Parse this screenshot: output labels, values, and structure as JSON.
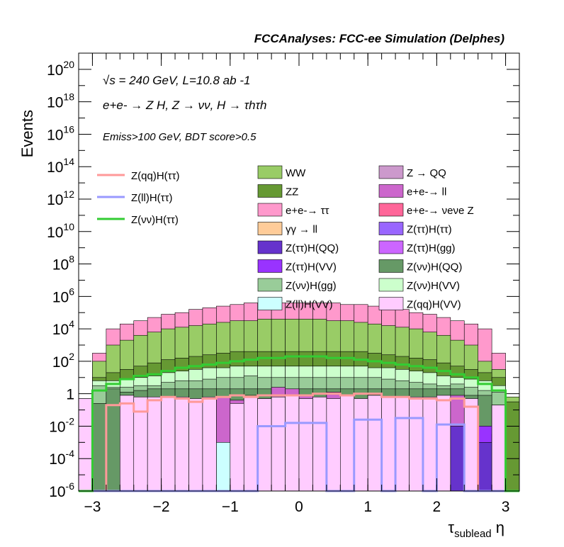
{
  "chart_data": {
    "type": "bar",
    "title": "FCCAnalyses: FCC-ee Simulation (Delphes)",
    "xlabel": "τsublead η",
    "ylabel": "Events",
    "xlim": [
      -3.2,
      3.2
    ],
    "ylim_log10": [
      -6,
      21
    ],
    "log_y": true,
    "grid": false,
    "x_ticks": [
      -3,
      -2,
      -1,
      0,
      1,
      2,
      3
    ],
    "x_tick_labels": [
      "−3",
      "−2",
      "−1",
      "0",
      "1",
      "2",
      "3"
    ],
    "y_ticks_log10": [
      -6,
      -4,
      -2,
      0,
      2,
      4,
      6,
      8,
      10,
      12,
      14,
      16,
      18,
      20
    ],
    "y_tick_labels": [
      "10-6",
      "10-4",
      "10-2",
      "1",
      "102",
      "104",
      "106",
      "108",
      "1010",
      "1012",
      "1014",
      "1016",
      "1018",
      "1020"
    ],
    "annotations": [
      "√s = 240 GeV, L=10.8 ab -1",
      "e+e- → Z H, Z → νν, H → τhτh",
      "Emiss>100 GeV, BDT score>0.5"
    ],
    "bin_edges_range": [
      -3.2,
      3.2
    ],
    "n_bins": 32,
    "stack_series": [
      {
        "name": "Z(qq)H(VV)",
        "color": "#ffccff",
        "log10_top": [
          -0.3,
          -6,
          -6,
          -0.1,
          -0.2,
          -0.2,
          -0.2,
          -0.2,
          -0.3,
          -0.2,
          -6,
          -0.6,
          -0.2,
          -0.3,
          -0.2,
          -0.1,
          -0.3,
          -0.2,
          -0.3,
          -0.1,
          -0.3,
          -0.1,
          -0.2,
          -0.2,
          -0.2,
          -0.2,
          -0.1,
          -6,
          -0.3,
          -6,
          -0.7,
          -6
        ]
      },
      {
        "name": "Z(ll)H(VV)",
        "color": "#ccffff",
        "log10_top": [
          -6,
          -6,
          -6,
          -6,
          -6,
          -6,
          -6,
          -6,
          -6,
          -3,
          -3,
          -6,
          -2,
          -2,
          -6,
          -6,
          -6,
          -6,
          -6,
          -3,
          -2,
          -6,
          -6,
          -6,
          -6,
          -6,
          -6,
          -6,
          -6,
          -6,
          -6,
          -6
        ]
      },
      {
        "name": "Z(ττ)H(gg)",
        "color": "#cc66ff",
        "log10_top": [
          -6,
          -6,
          -6,
          -6,
          -6,
          -6,
          -6,
          -6,
          -6,
          -6,
          -6,
          -6,
          -6,
          -6,
          -6,
          -6,
          -6,
          -6,
          -6,
          -6,
          -6,
          -6,
          -6,
          -6,
          -6,
          -6,
          -6,
          -6,
          -6,
          -6,
          -6,
          -6
        ]
      },
      {
        "name": "Z(ττ)H(QQ)",
        "color": "#6633cc",
        "log10_top": [
          -6,
          -6,
          -6,
          -6,
          -6,
          -6,
          -6,
          -6,
          -6,
          -6,
          -6,
          -6,
          -6,
          -3,
          -2,
          -6,
          -3,
          -3,
          -6,
          -6,
          -6,
          -3,
          -3,
          -3,
          -6,
          -6,
          -6,
          -2,
          -6,
          -3,
          -6,
          -6
        ]
      },
      {
        "name": "Z(ττ)H(VV)",
        "color": "#9933ff",
        "log10_top": [
          -6,
          -6,
          -6,
          -6,
          -6,
          -6,
          -6,
          -6,
          -6,
          -6,
          -6,
          -6,
          -6,
          -6,
          -6,
          -6,
          -6,
          -6,
          -6,
          -6,
          -6,
          -6,
          -6,
          -6,
          -6,
          -6,
          -6,
          -6,
          -6,
          -2,
          -2.5,
          -6
        ]
      },
      {
        "name": "γγ → ll",
        "color": "#ffcc99",
        "log10_top": [
          -6,
          -6,
          -6,
          -6,
          -6,
          -6,
          -6,
          -6,
          -6,
          -6,
          -6,
          -6,
          -0.1,
          -6,
          -6,
          -6,
          -6,
          -6,
          -6,
          -6,
          -6,
          -0.1,
          -6,
          -6,
          -6,
          -6,
          -6,
          -6,
          -6,
          -6,
          -6,
          -6
        ]
      },
      {
        "name": "e+e-→ ll",
        "color": "#cc66cc",
        "log10_top": [
          -6,
          -6,
          -6,
          -6,
          -6,
          -6,
          -6,
          -6,
          -6,
          -6,
          -0.2,
          -0.4,
          -0.2,
          -0.3,
          0.4,
          0.3,
          -0.1,
          -6,
          0.1,
          -0.2,
          -0.5,
          -0.1,
          -0.2,
          -0.2,
          -0.4,
          -0.2,
          -0.2,
          -0.1,
          -6,
          -6,
          -6,
          -6
        ]
      },
      {
        "name": "Z(νν)H(QQ)",
        "color": "#669966",
        "log10_top": [
          -6,
          -0.6,
          0.3,
          0.1,
          0.2,
          0.3,
          0.3,
          0.3,
          0.3,
          0.3,
          0.3,
          0.3,
          0.3,
          0.3,
          0.3,
          0.3,
          0.3,
          0.3,
          0.3,
          0.3,
          0.3,
          0.3,
          0.3,
          0.3,
          0.3,
          0.3,
          0.3,
          0.3,
          -0.1,
          -0.1,
          -0.7,
          -6
        ]
      },
      {
        "name": "Z(νν)H(gg)",
        "color": "#99cc99",
        "log10_top": [
          -6,
          0.5,
          0.4,
          0.4,
          0.5,
          0.5,
          0.7,
          0.8,
          0.8,
          0.9,
          1.0,
          1.0,
          1.1,
          1.0,
          1.0,
          1.0,
          1.0,
          1.0,
          1.0,
          1.0,
          1.0,
          1.0,
          0.9,
          0.8,
          0.7,
          0.6,
          0.5,
          0.6,
          0.4,
          0.2,
          0.1,
          -6
        ]
      },
      {
        "name": "Z(νν)H(VV)",
        "color": "#ccffcc",
        "log10_top": [
          -6,
          0.8,
          0.8,
          0.9,
          1.0,
          1.1,
          1.3,
          1.4,
          1.5,
          1.6,
          1.6,
          1.7,
          1.7,
          1.7,
          1.7,
          1.7,
          1.7,
          1.7,
          1.7,
          1.7,
          1.7,
          1.6,
          1.6,
          1.5,
          1.4,
          1.3,
          1.1,
          1.0,
          0.9,
          0.8,
          0.5,
          -6
        ]
      },
      {
        "name": "ZZ",
        "color": "#669933",
        "log10_top": [
          -1.3,
          1.0,
          1.3,
          1.5,
          1.7,
          1.9,
          2.1,
          2.2,
          2.3,
          2.4,
          2.5,
          2.6,
          2.6,
          2.6,
          2.6,
          2.6,
          2.6,
          2.6,
          2.6,
          2.6,
          2.6,
          2.5,
          2.4,
          2.3,
          2.2,
          2.1,
          1.9,
          1.7,
          1.5,
          1.3,
          1.0,
          -0.5
        ]
      },
      {
        "name": "WW",
        "color": "#99cc66",
        "log10_top": [
          -1.0,
          2.0,
          3.0,
          3.3,
          3.6,
          3.8,
          4.0,
          4.1,
          4.2,
          4.3,
          4.4,
          4.5,
          4.5,
          4.6,
          4.6,
          4.6,
          4.6,
          4.6,
          4.5,
          4.5,
          4.4,
          4.3,
          4.2,
          4.1,
          4.0,
          3.8,
          3.6,
          3.3,
          3.0,
          2.0,
          1.5,
          -0.2
        ]
      },
      {
        "name": "e+e-→ ττ",
        "color": "#ff99cc",
        "log10_top": [
          -0.3,
          2.5,
          4.0,
          4.3,
          4.5,
          4.7,
          4.9,
          5.0,
          5.2,
          5.3,
          5.4,
          5.5,
          5.6,
          5.6,
          5.6,
          5.6,
          5.6,
          5.6,
          5.6,
          5.5,
          5.5,
          5.4,
          5.3,
          5.2,
          5.0,
          4.9,
          4.7,
          4.5,
          4.3,
          4.0,
          2.5,
          -0.3
        ]
      }
    ],
    "line_series": [
      {
        "name": "Z(qq)H(ττ)",
        "color": "#ff9999",
        "log10": [
          -6,
          -6,
          -0.7,
          -0.6,
          -1.1,
          -0.4,
          -0.2,
          -0.3,
          -0.5,
          -0.3,
          -0.2,
          -0.1,
          -0.2,
          -0.1,
          -0.1,
          -0.1,
          -0.1,
          0.0,
          0.0,
          -0.1,
          0.0,
          0.0,
          -0.2,
          -0.2,
          -0.3,
          -0.3,
          -0.4,
          -0.3,
          -0.8,
          -6,
          -6,
          -6
        ]
      },
      {
        "name": "Z(ll)H(ττ)",
        "color": "#9999ff",
        "log10": [
          -6,
          -6,
          -6,
          -6,
          -6,
          -6,
          -6,
          -6,
          -6,
          -6,
          -6,
          -6,
          -6,
          -2,
          -2,
          -1.8,
          -1.8,
          -1.8,
          -6,
          -6,
          -1.6,
          -1.6,
          -6,
          -1.5,
          -1.5,
          -6,
          -1.9,
          -1.9,
          -6,
          -6,
          -6,
          -6
        ]
      },
      {
        "name": "Z(νν)H(ττ)",
        "color": "#33cc33",
        "log10": [
          -6,
          0.2,
          0.6,
          0.9,
          1.1,
          1.2,
          1.4,
          1.6,
          1.7,
          1.8,
          1.9,
          2.0,
          2.1,
          2.2,
          2.2,
          2.3,
          2.3,
          2.3,
          2.2,
          2.2,
          2.1,
          2.0,
          1.9,
          1.8,
          1.7,
          1.6,
          1.4,
          1.2,
          1.0,
          0.6,
          0.2,
          -6
        ]
      }
    ],
    "legend": {
      "placement": "top",
      "lines": [
        "Z(qq)H(ττ)",
        "Z(ll)H(ττ)",
        "Z(νν)H(ττ)"
      ],
      "col1": [
        "WW",
        "ZZ",
        "e+e-→ ττ",
        "γγ → ll",
        "Z(ττ)H(QQ)",
        "Z(ττ)H(VV)",
        "Z(νν)H(gg)",
        "Z(ll)H(VV)"
      ],
      "col2": [
        "Z → QQ",
        "e+e-→ ll",
        "e+e-→ νeνe Z",
        "Z(ττ)H(ττ)",
        "Z(ττ)H(gg)",
        "Z(νν)H(QQ)",
        "Z(νν)H(VV)",
        "Z(qq)H(VV)"
      ],
      "colors": {
        "WW": "#99cc66",
        "ZZ": "#669933",
        "e+e-→ ττ": "#ff99cc",
        "γγ → ll": "#ffcc99",
        "Z(ττ)H(QQ)": "#6633cc",
        "Z(ττ)H(VV)": "#9933ff",
        "Z(νν)H(gg)": "#99cc99",
        "Z(ll)H(VV)": "#ccffff",
        "Z → QQ": "#cc99cc",
        "e+e-→ ll": "#cc66cc",
        "e+e-→ νeνe Z": "#ff6699",
        "Z(ττ)H(ττ)": "#9966ff",
        "Z(ττ)H(gg)": "#cc66ff",
        "Z(νν)H(QQ)": "#669966",
        "Z(νν)H(VV)": "#ccffcc",
        "Z(qq)H(VV)": "#ffccff"
      }
    }
  }
}
